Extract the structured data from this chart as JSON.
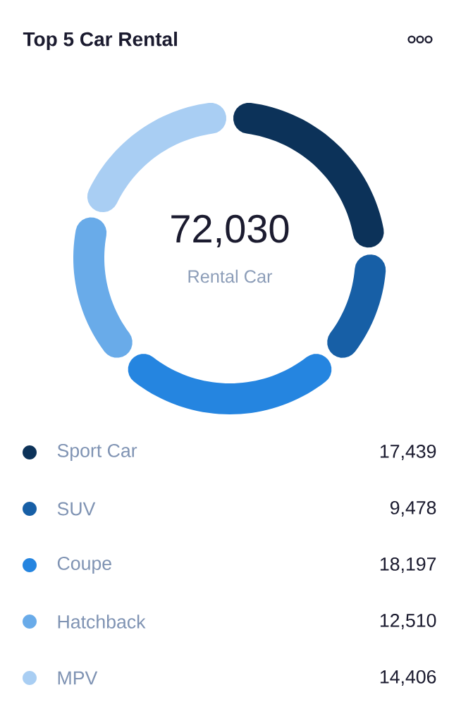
{
  "chart_data": {
    "type": "donut",
    "title": "Top 5 Car Rental",
    "categories": [
      "Sport Car",
      "SUV",
      "Coupe",
      "Hatchback",
      "MPV"
    ],
    "values": [
      17439,
      9478,
      18197,
      12510,
      14406
    ],
    "value_labels": [
      "17,439",
      "9,478",
      "18,197",
      "12,510",
      "14,406"
    ],
    "colors": [
      "#0c3259",
      "#175fa6",
      "#2585e0",
      "#69abe9",
      "#a9cef3"
    ],
    "annotations": [
      "72,030",
      "Rental Car"
    ],
    "legend": "bottom"
  }
}
